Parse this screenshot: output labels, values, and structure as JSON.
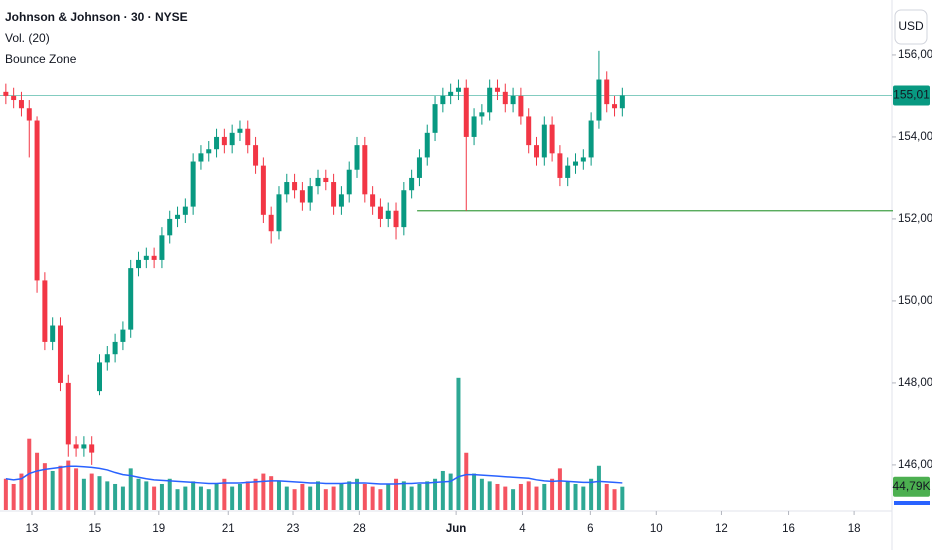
{
  "chart_data": {
    "type": "candlestick",
    "title": "Johnson & Johnson · 30 · NYSE",
    "currency": "USD",
    "x": [
      0,
      1,
      2,
      3,
      4,
      5,
      6,
      7,
      8,
      9,
      10,
      11,
      12,
      13,
      14,
      15,
      16,
      17,
      18,
      19,
      20,
      21,
      22,
      23,
      24,
      25,
      26,
      27,
      28,
      29,
      30,
      31,
      32,
      33,
      34,
      35,
      36,
      37,
      38,
      39,
      40,
      41,
      42,
      43,
      44,
      45,
      46,
      47,
      48,
      49,
      50,
      51,
      52,
      53,
      54,
      55,
      56,
      57,
      58,
      59,
      60,
      61,
      62,
      63,
      64,
      65,
      66,
      67,
      68,
      69,
      70,
      71,
      72,
      73,
      74,
      75,
      76,
      77,
      78,
      79
    ],
    "open": [
      155.1,
      155.0,
      154.9,
      154.7,
      154.4,
      150.5,
      149.0,
      149.4,
      148.0,
      146.5,
      146.4,
      146.5,
      147.8,
      148.5,
      148.7,
      149.0,
      149.3,
      150.8,
      151.0,
      151.1,
      151.0,
      151.6,
      152.0,
      152.1,
      152.3,
      153.4,
      153.6,
      153.7,
      154.0,
      153.8,
      154.1,
      154.2,
      153.8,
      153.3,
      152.1,
      151.7,
      152.6,
      152.9,
      152.7,
      152.4,
      152.8,
      153.0,
      152.9,
      152.3,
      152.6,
      153.2,
      153.8,
      152.6,
      152.3,
      152.0,
      152.2,
      151.8,
      152.7,
      153.0,
      153.5,
      154.1,
      154.8,
      155.0,
      155.1,
      155.2,
      154.0,
      154.5,
      154.6,
      155.2,
      155.1,
      154.8,
      155.0,
      154.5,
      153.8,
      153.5,
      154.3,
      153.6,
      153.0,
      153.3,
      153.4,
      153.5,
      154.4,
      155.4,
      154.8,
      154.7
    ],
    "high": [
      155.3,
      155.2,
      155.1,
      154.9,
      154.5,
      150.7,
      149.6,
      149.6,
      148.2,
      146.7,
      146.7,
      146.7,
      148.7,
      148.9,
      149.2,
      149.5,
      151.0,
      151.2,
      151.3,
      151.3,
      151.8,
      152.2,
      152.3,
      152.5,
      153.6,
      153.8,
      153.9,
      154.2,
      154.2,
      154.3,
      154.4,
      154.4,
      154.0,
      153.5,
      152.3,
      152.8,
      153.1,
      153.1,
      152.9,
      153.0,
      153.2,
      153.2,
      153.1,
      152.8,
      153.4,
      154.0,
      154.0,
      152.8,
      152.5,
      152.4,
      152.4,
      152.9,
      153.2,
      153.7,
      154.3,
      155.0,
      155.2,
      155.3,
      155.4,
      155.4,
      154.7,
      154.8,
      155.4,
      155.4,
      155.3,
      155.2,
      155.2,
      154.7,
      154.0,
      154.5,
      154.5,
      153.8,
      153.5,
      153.6,
      153.7,
      154.6,
      156.1,
      155.6,
      155.0,
      155.2
    ],
    "low": [
      154.8,
      154.7,
      154.5,
      153.5,
      150.2,
      148.8,
      148.8,
      147.8,
      146.2,
      146.2,
      146.2,
      146.0,
      147.7,
      148.3,
      148.5,
      148.8,
      149.1,
      150.6,
      150.8,
      150.8,
      150.8,
      151.4,
      151.8,
      151.9,
      152.1,
      153.2,
      153.4,
      153.5,
      153.6,
      153.6,
      153.9,
      153.6,
      153.1,
      151.9,
      151.4,
      151.5,
      152.4,
      152.5,
      152.2,
      152.2,
      152.6,
      152.7,
      152.1,
      152.1,
      152.4,
      153.0,
      152.4,
      152.1,
      151.8,
      151.8,
      151.5,
      151.6,
      152.5,
      152.8,
      153.3,
      153.9,
      154.6,
      154.8,
      154.9,
      152.2,
      153.8,
      154.3,
      154.4,
      154.9,
      154.6,
      154.6,
      154.3,
      153.6,
      153.3,
      153.3,
      153.4,
      152.8,
      152.8,
      153.1,
      153.2,
      153.3,
      154.2,
      154.6,
      154.5,
      154.5
    ],
    "close": [
      155.0,
      154.9,
      154.7,
      154.4,
      150.5,
      149.0,
      149.4,
      148.0,
      146.5,
      146.4,
      146.5,
      146.3,
      148.5,
      148.7,
      149.0,
      149.3,
      150.8,
      151.0,
      151.1,
      151.0,
      151.6,
      152.0,
      152.1,
      152.3,
      153.4,
      153.6,
      153.7,
      154.0,
      153.8,
      154.1,
      154.2,
      153.8,
      153.3,
      152.1,
      151.7,
      152.6,
      152.9,
      152.7,
      152.4,
      152.8,
      153.0,
      152.9,
      152.3,
      152.6,
      153.2,
      153.8,
      152.6,
      152.3,
      152.0,
      152.2,
      151.8,
      152.7,
      153.0,
      153.5,
      154.1,
      154.8,
      155.0,
      155.1,
      155.2,
      154.0,
      154.5,
      154.6,
      155.2,
      155.1,
      154.8,
      155.0,
      154.5,
      153.8,
      153.5,
      154.3,
      153.6,
      153.0,
      153.3,
      153.4,
      153.5,
      154.4,
      155.4,
      154.8,
      154.7,
      155.01
    ],
    "up_color": "#089981",
    "down_color": "#f23645",
    "volume": {
      "name": "Vol. (20)",
      "axis": "y2",
      "values": [
        60000,
        50000,
        70000,
        137000,
        110000,
        90000,
        75000,
        85000,
        95000,
        80000,
        60000,
        70000,
        65000,
        55000,
        50000,
        45000,
        80000,
        60000,
        55000,
        45000,
        50000,
        60000,
        40000,
        45000,
        55000,
        45000,
        40000,
        50000,
        60000,
        45000,
        50000,
        55000,
        60000,
        70000,
        65000,
        55000,
        45000,
        40000,
        50000,
        45000,
        55000,
        40000,
        45000,
        50000,
        55000,
        60000,
        50000,
        45000,
        40000,
        50000,
        60000,
        55000,
        45000,
        50000,
        55000,
        60000,
        75000,
        70000,
        254000,
        110000,
        70000,
        60000,
        55000,
        50000,
        45000,
        40000,
        50000,
        55000,
        45000,
        50000,
        60000,
        80000,
        55000,
        50000,
        45000,
        60000,
        85000,
        50000,
        40000,
        44790
      ],
      "ma": [
        60000,
        58000,
        60000,
        70000,
        75000,
        78000,
        80000,
        82000,
        84000,
        84000,
        83000,
        82000,
        80000,
        77000,
        72000,
        68000,
        66000,
        63000,
        60000,
        58000,
        57000,
        56000,
        55000,
        54000,
        53000,
        52000,
        51000,
        51000,
        52000,
        52000,
        52000,
        53000,
        54000,
        55000,
        56000,
        56000,
        55000,
        54000,
        53000,
        52000,
        52000,
        51000,
        51000,
        51000,
        52000,
        52000,
        52000,
        51000,
        50000,
        50000,
        50000,
        51000,
        51000,
        52000,
        52000,
        53000,
        54000,
        55000,
        64000,
        68000,
        68000,
        67000,
        66000,
        65000,
        64000,
        63000,
        62000,
        61000,
        58000,
        56000,
        55000,
        56000,
        55000,
        54000,
        53000,
        53000,
        55000,
        54000,
        53000,
        52000
      ],
      "ma_color": "#2962ff",
      "last": {
        "value": 44790,
        "label": "44,79K"
      },
      "last_color": "#4caf50"
    },
    "last_price": {
      "value": 155.01,
      "label": "155,01"
    },
    "last_price_color": "#089981",
    "bounce_zone": {
      "name": "Bounce Zone",
      "value": 152.2,
      "x_start": 52.7,
      "color": "#43a047"
    },
    "xlim": [
      -0.75,
      113.3
    ],
    "xticks": [
      {
        "value": 3.35,
        "label": "13"
      },
      {
        "value": 11.4,
        "label": "15"
      },
      {
        "value": 19.6,
        "label": "19"
      },
      {
        "value": 28.5,
        "label": "21"
      },
      {
        "value": 36.8,
        "label": "23"
      },
      {
        "value": 45.3,
        "label": "28"
      },
      {
        "value": 57.7,
        "label": "Jun"
      },
      {
        "value": 66.2,
        "label": "4"
      },
      {
        "value": 74.9,
        "label": "6"
      },
      {
        "value": 83.35,
        "label": "10"
      },
      {
        "value": 91.7,
        "label": "12"
      },
      {
        "value": 100.3,
        "label": "16"
      },
      {
        "value": 108.7,
        "label": "18"
      }
    ],
    "ylim": [
      144.9,
      157.34
    ],
    "yticks": [
      {
        "value": 146,
        "label": "146,00"
      },
      {
        "value": 148,
        "label": "148,00"
      },
      {
        "value": 150,
        "label": "150,00"
      },
      {
        "value": 152,
        "label": "152,00"
      },
      {
        "value": 154,
        "label": "154,00"
      },
      {
        "value": 156,
        "label": "156,00"
      }
    ],
    "y2lim": [
      0,
      980000
    ]
  }
}
